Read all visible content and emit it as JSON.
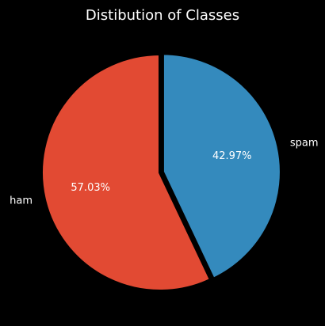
{
  "chart_data": {
    "type": "pie",
    "title": "Distibution of Classes",
    "slices": [
      {
        "label": "spam",
        "value": 42.97,
        "pct_text": "42.97%",
        "color": "#348ABD"
      },
      {
        "label": "ham",
        "value": 57.03,
        "pct_text": "57.03%",
        "color": "#E24A33"
      }
    ],
    "start_angle_deg": 90,
    "direction": "clockwise",
    "explode": {
      "spam": 0.02,
      "ham": 0
    },
    "edge_color": "#000000",
    "background": "#000000",
    "text_color": "#ffffff"
  }
}
